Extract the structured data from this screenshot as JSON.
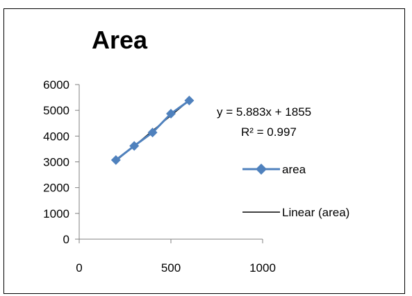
{
  "chart_data": {
    "type": "scatter",
    "title": "Area",
    "x": [
      200,
      300,
      400,
      500,
      600
    ],
    "series": [
      {
        "name": "area",
        "values": [
          3070,
          3620,
          4140,
          4870,
          5380
        ],
        "color": "#4f81bd",
        "marker": "diamond"
      }
    ],
    "trendline": {
      "name": "Linear (area)",
      "type": "linear",
      "slope": 5.883,
      "intercept": 1855,
      "equation": "y = 5.883x + 1855",
      "r_squared": "R² = 0.997",
      "color": "#000000"
    },
    "xlim": [
      0,
      1000
    ],
    "ylim": [
      0,
      6000
    ],
    "x_ticks": [
      "0",
      "500",
      "1000"
    ],
    "y_ticks": [
      "0",
      "1000",
      "2000",
      "3000",
      "4000",
      "5000",
      "6000"
    ],
    "grid": false,
    "legend_position": "right"
  }
}
